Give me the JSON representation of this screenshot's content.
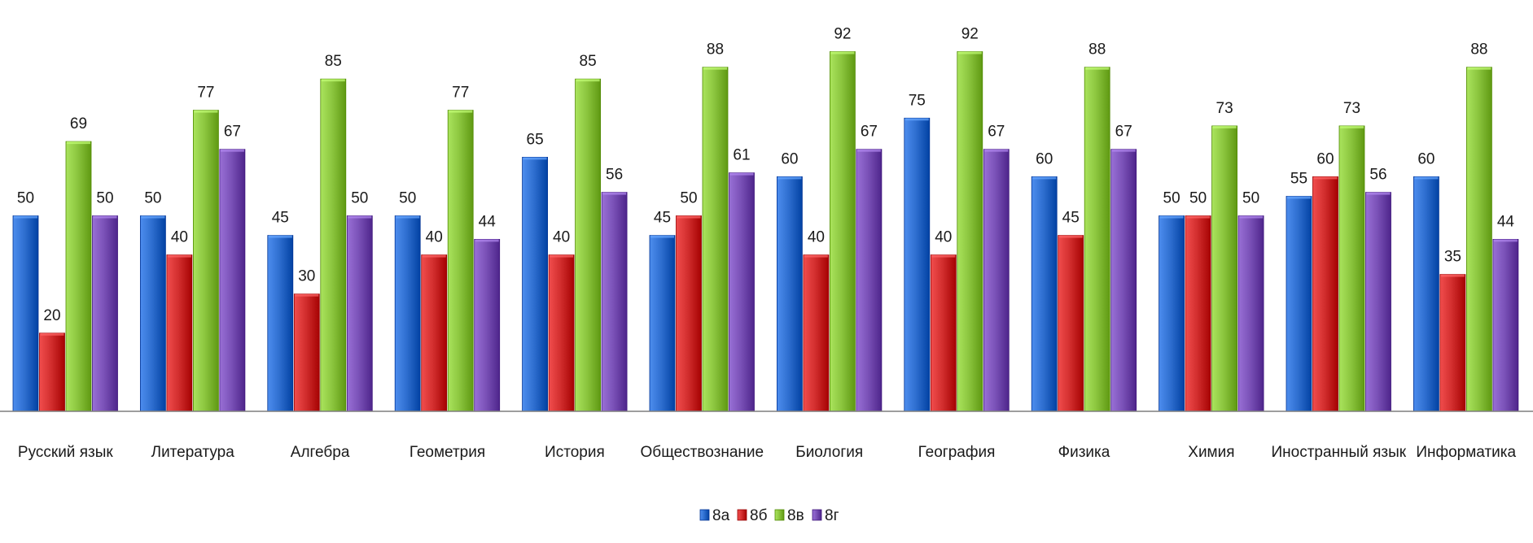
{
  "chart_data": {
    "type": "bar",
    "title": "",
    "xlabel": "",
    "ylabel": "",
    "ylim": [
      0,
      100
    ],
    "grid": false,
    "legend_position": "bottom",
    "categories": [
      "Русский язык",
      "Литература",
      "Алгебра",
      "Геометрия",
      "История",
      "Обществознание",
      "Биология",
      "География",
      "Физика",
      "Химия",
      "Иностранный язык",
      "Информатика"
    ],
    "series": [
      {
        "name": "8а",
        "color": "#2f6fd0",
        "values": [
          50,
          50,
          45,
          50,
          65,
          45,
          60,
          75,
          60,
          50,
          55,
          60
        ]
      },
      {
        "name": "8б",
        "color": "#d32f2f",
        "values": [
          20,
          40,
          30,
          40,
          40,
          50,
          40,
          40,
          45,
          50,
          60,
          35
        ]
      },
      {
        "name": "8в",
        "color": "#8cc63f",
        "values": [
          69,
          77,
          85,
          77,
          85,
          88,
          92,
          92,
          88,
          73,
          73,
          88
        ]
      },
      {
        "name": "8г",
        "color": "#7b52b8",
        "values": [
          50,
          67,
          50,
          44,
          56,
          61,
          67,
          67,
          67,
          50,
          56,
          44
        ]
      }
    ]
  }
}
